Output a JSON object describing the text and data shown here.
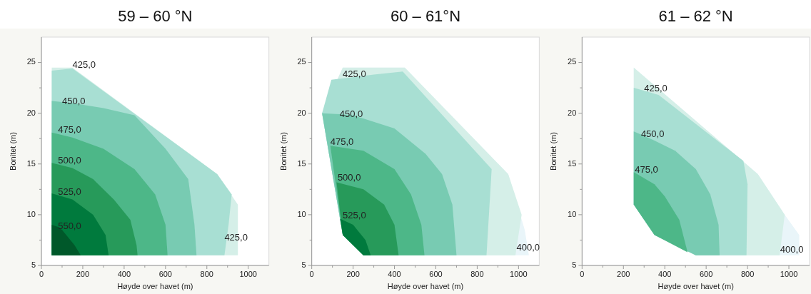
{
  "chart_data": [
    {
      "type": "area",
      "title": "59 – 60 °N",
      "xlabel": "Høyde over havet (m)",
      "ylabel": "Bonitet (m)",
      "xlim": [
        0,
        1100
      ],
      "ylim": [
        5,
        27.5
      ],
      "xticks": [
        0,
        {
          "value": 100,
          "label": null
        },
        200,
        {
          "value": 300,
          "label": null
        },
        400,
        {
          "value": 500,
          "label": null
        },
        600,
        {
          "value": 700,
          "label": null
        },
        800,
        {
          "value": 900,
          "label": null
        },
        1000
      ],
      "yticks": [
        5,
        {
          "value": 7.5,
          "label": null
        },
        10,
        {
          "value": 12.5,
          "label": null
        },
        15,
        {
          "value": 17.5,
          "label": null
        },
        20,
        {
          "value": 22.5,
          "label": null
        },
        25
      ],
      "series": [
        {
          "color": "#d5efe8",
          "x": [
            50,
            50,
            150,
            850,
            950,
            950
          ],
          "values": [
            6,
            24.5,
            24.5,
            14,
            11,
            6
          ]
        },
        {
          "color": "#a8dfd3",
          "x": [
            50,
            50,
            150,
            850,
            920,
            905,
            885
          ],
          "values": [
            6,
            24.2,
            24.4,
            14,
            12,
            9,
            6
          ]
        },
        {
          "color": "#78cbb2",
          "x": [
            50,
            50,
            100,
            150,
            300,
            450,
            600,
            710,
            740,
            750
          ],
          "values": [
            6,
            21.2,
            21.1,
            21,
            20.5,
            19.8,
            16.5,
            13.5,
            9,
            6
          ]
        },
        {
          "color": "#4db788",
          "x": [
            50,
            50,
            150,
            300,
            450,
            550,
            600,
            610
          ],
          "values": [
            6,
            18.1,
            17.6,
            16.5,
            14.5,
            12,
            9,
            6
          ]
        },
        {
          "color": "#279a5a",
          "x": [
            50,
            50,
            150,
            250,
            350,
            430,
            460,
            465
          ],
          "values": [
            6,
            15.1,
            14.6,
            13.5,
            11.5,
            9.5,
            7,
            6
          ]
        },
        {
          "color": "#007a3d",
          "x": [
            50,
            50,
            150,
            250,
            310,
            325
          ],
          "values": [
            6,
            12.1,
            11.5,
            10,
            8,
            6
          ]
        },
        {
          "color": "#00582a",
          "x": [
            50,
            50,
            80,
            100,
            160,
            190
          ],
          "values": [
            6,
            9,
            8.8,
            8.5,
            7,
            6
          ]
        }
      ],
      "annotations": [
        {
          "text": "425,0",
          "x": 150,
          "y": 24.7
        },
        {
          "text": "450,0",
          "x": 100,
          "y": 21.1
        },
        {
          "text": "475,0",
          "x": 80,
          "y": 18.3
        },
        {
          "text": "500,0",
          "x": 80,
          "y": 15.3
        },
        {
          "text": "525,0",
          "x": 80,
          "y": 12.2
        },
        {
          "text": "550,0",
          "x": 80,
          "y": 8.8
        },
        {
          "text": "425,0",
          "x": 885,
          "y": 7.7
        }
      ]
    },
    {
      "type": "area",
      "title": "60 – 61°N",
      "xlabel": "Høyde over havet (m)",
      "ylabel": "Bonitet (m)",
      "xlim": [
        0,
        1100
      ],
      "ylim": [
        5,
        27.5
      ],
      "xticks": [
        0,
        {
          "value": 100,
          "label": null
        },
        200,
        {
          "value": 300,
          "label": null
        },
        400,
        {
          "value": 500,
          "label": null
        },
        600,
        {
          "value": 700,
          "label": null
        },
        800,
        {
          "value": 900,
          "label": null
        },
        1000
      ],
      "yticks": [
        5,
        {
          "value": 7.5,
          "label": null
        },
        10,
        {
          "value": 12.5,
          "label": null
        },
        15,
        {
          "value": 17.5,
          "label": null
        },
        20,
        {
          "value": 22.5,
          "label": null
        },
        25
      ],
      "series": [
        {
          "color": "#e9f5f9",
          "x": [
            150,
            450,
            950,
            1030,
            1050,
            250,
            150,
            50
          ],
          "values": [
            24.5,
            24.5,
            14,
            8.5,
            6,
            6,
            8,
            20
          ]
        },
        {
          "color": "#d5efe8",
          "x": [
            150,
            450,
            950,
            1015,
            990,
            985,
            250,
            150,
            50
          ],
          "values": [
            24.5,
            24.5,
            14,
            10,
            6.7,
            6,
            6,
            8,
            20
          ]
        },
        {
          "color": "#a8dfd3",
          "x": [
            95,
            300,
            440,
            870,
            845,
            250,
            150,
            50
          ],
          "values": [
            23.3,
            23.8,
            24.1,
            14.5,
            6,
            6,
            8,
            20
          ]
        },
        {
          "color": "#78cbb2",
          "x": [
            50,
            135,
            200,
            400,
            550,
            630,
            680,
            700,
            250,
            150
          ],
          "values": [
            20,
            19.9,
            19.8,
            18.5,
            16,
            14,
            11,
            6,
            6,
            8
          ]
        },
        {
          "color": "#4db788",
          "x": [
            90,
            250,
            400,
            480,
            530,
            545,
            250,
            150
          ],
          "values": [
            16.8,
            16.3,
            14.5,
            12,
            9,
            6,
            6,
            8
          ]
        },
        {
          "color": "#279a5a",
          "x": [
            120,
            250,
            350,
            400,
            420,
            250,
            150
          ],
          "values": [
            13.2,
            12.5,
            11,
            9,
            6,
            6,
            8
          ]
        },
        {
          "color": "#007a3d",
          "x": [
            137,
            200,
            260,
            285,
            250,
            150
          ],
          "values": [
            9.6,
            9,
            7.5,
            6,
            6,
            8
          ]
        }
      ],
      "annotations": [
        {
          "text": "425,0",
          "x": 150,
          "y": 23.8
        },
        {
          "text": "450,0",
          "x": 135,
          "y": 19.9
        },
        {
          "text": "475,0",
          "x": 90,
          "y": 17.1
        },
        {
          "text": "500,0",
          "x": 125,
          "y": 13.6
        },
        {
          "text": "525,0",
          "x": 150,
          "y": 9.9
        },
        {
          "text": "400,0",
          "x": 990,
          "y": 6.7
        }
      ]
    },
    {
      "type": "area",
      "title": "61 – 62 °N",
      "xlabel": "Høyde over havet (m)",
      "ylabel": "Bonitet (m)",
      "xlim": [
        0,
        1100
      ],
      "ylim": [
        5,
        27.5
      ],
      "xticks": [
        0,
        {
          "value": 100,
          "label": null
        },
        200,
        {
          "value": 300,
          "label": null
        },
        400,
        {
          "value": 500,
          "label": null
        },
        600,
        {
          "value": 700,
          "label": null
        },
        800,
        {
          "value": 900,
          "label": null
        },
        1000
      ],
      "yticks": [
        5,
        {
          "value": 7.5,
          "label": null
        },
        10,
        {
          "value": 12.5,
          "label": null
        },
        15,
        {
          "value": 17.5,
          "label": null
        },
        20,
        {
          "value": 22.5,
          "label": null
        },
        25
      ],
      "series": [
        {
          "color": "#e9f5f9",
          "x": [
            250,
            850,
            980,
            1050,
            1050,
            550,
            350,
            250
          ],
          "values": [
            24.5,
            14,
            10,
            8,
            6,
            6,
            8,
            11
          ]
        },
        {
          "color": "#d5efe8",
          "x": [
            250,
            850,
            980,
            958,
            955,
            550,
            350,
            250
          ],
          "values": [
            24.5,
            14,
            10,
            6.5,
            6,
            6,
            8,
            11
          ]
        },
        {
          "color": "#a8dfd3",
          "x": [
            250,
            370,
            780,
            800,
            795,
            550,
            350,
            250
          ],
          "values": [
            22.5,
            21.8,
            15.3,
            13,
            6,
            6,
            8,
            11
          ]
        },
        {
          "color": "#78cbb2",
          "x": [
            250,
            285,
            350,
            450,
            550,
            620,
            660,
            665,
            550,
            350,
            250
          ],
          "values": [
            18.2,
            17.9,
            17.3,
            16.3,
            14.5,
            12,
            9,
            6,
            6,
            8,
            11
          ]
        },
        {
          "color": "#4db788",
          "x": [
            250,
            350,
            400,
            470,
            510,
            350,
            250
          ],
          "values": [
            14.2,
            13,
            11.8,
            9.5,
            6.3,
            8,
            11
          ]
        }
      ],
      "annotations": [
        {
          "text": "425,0",
          "x": 300,
          "y": 22.4
        },
        {
          "text": "450,0",
          "x": 285,
          "y": 17.9
        },
        {
          "text": "475,0",
          "x": 255,
          "y": 14.4
        },
        {
          "text": "400,0",
          "x": 958,
          "y": 6.5
        }
      ]
    }
  ]
}
